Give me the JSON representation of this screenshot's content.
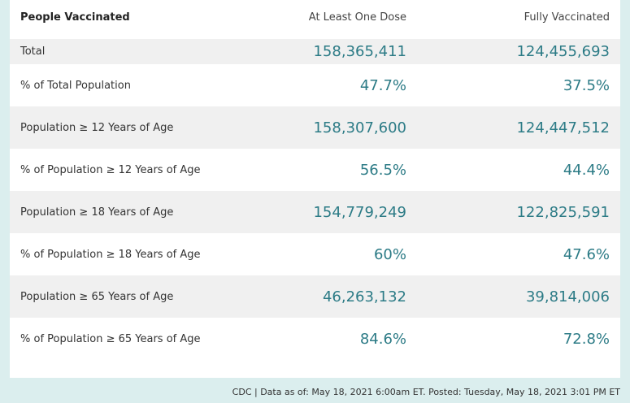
{
  "table": {
    "header": [
      "People Vaccinated",
      "At Least One Dose",
      "Fully Vaccinated"
    ],
    "rows": [
      [
        "Total",
        "158,365,411",
        "124,455,693"
      ],
      [
        "% of Total Population",
        "47.7%",
        "37.5%"
      ],
      [
        "Population ≥ 12 Years of Age",
        "158,307,600",
        "124,447,512"
      ],
      [
        "% of Population ≥ 12 Years of Age",
        "56.5%",
        "44.4%"
      ],
      [
        "Population ≥ 18 Years of Age",
        "154,779,249",
        "122,825,591"
      ],
      [
        "% of Population ≥ 18 Years of Age",
        "60%",
        "47.6%"
      ],
      [
        "Population ≥ 65 Years of Age",
        "46,263,132",
        "39,814,006"
      ],
      [
        "% of Population ≥ 65 Years of Age",
        "84.6%",
        "72.8%"
      ]
    ]
  },
  "footer": "CDC | Data as of: May 18, 2021 6:00am ET. Posted: Tuesday, May 18, 2021 3:01 PM ET"
}
